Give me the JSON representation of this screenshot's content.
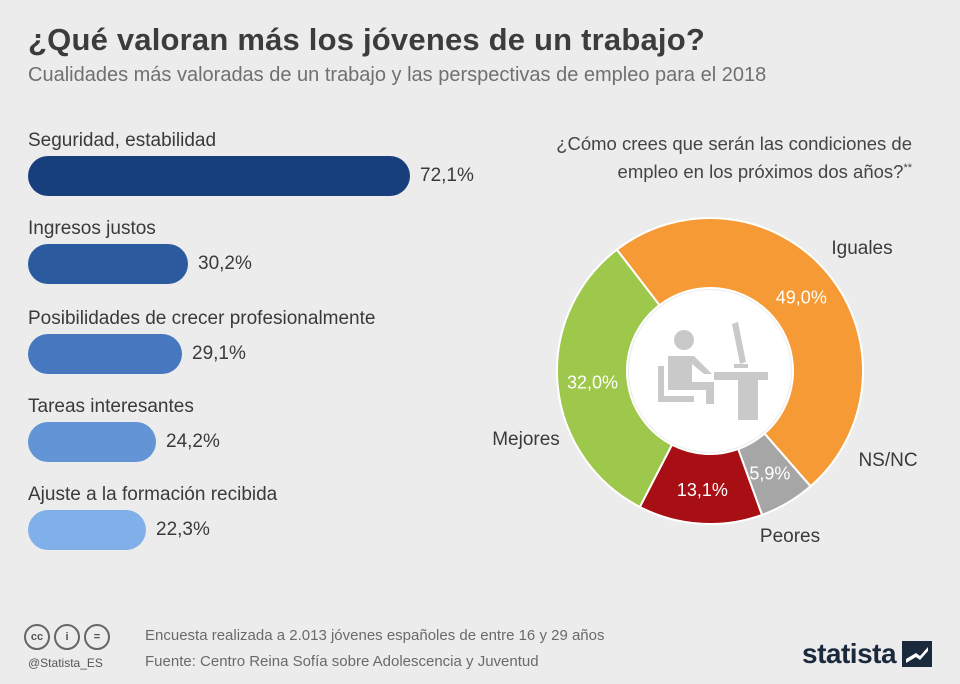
{
  "header": {
    "title": "¿Qué valoran más los jóvenes de un trabajo?",
    "subtitle": "Cualidades más valoradas de un trabajo y las perspectivas de empleo para el 2018"
  },
  "chart_data": [
    {
      "type": "bar",
      "orientation": "horizontal",
      "categories": [
        "Seguridad, estabilidad",
        "Ingresos justos",
        "Posibilidades de crecer profesionalmente",
        "Tareas interesantes",
        "Ajuste a la formación recibida"
      ],
      "values": [
        72.1,
        30.2,
        29.1,
        24.2,
        22.3
      ],
      "value_labels": [
        "72,1%",
        "30,2%",
        "29,1%",
        "24,2%",
        "22,3%"
      ],
      "colors": [
        "#173f7c",
        "#2c5a9e",
        "#4677bf",
        "#6394d6",
        "#7fb0ea"
      ]
    },
    {
      "type": "pie",
      "donut": true,
      "title": "¿Cómo crees que serán las condiciones de empleo en los próximos dos años?",
      "title_line1": "¿Cómo crees que serán las condiciones de",
      "title_line2": "empleo en los próximos dos años?",
      "title_marker": "**",
      "slices": [
        {
          "label": "Iguales",
          "value": 49.0,
          "value_label": "49,0%",
          "color": "#f59a35"
        },
        {
          "label": "NS/NC",
          "value": 5.9,
          "value_label": "5,9%",
          "color": "#a6a6a6"
        },
        {
          "label": "Peores",
          "value": 13.1,
          "value_label": "13,1%",
          "color": "#a80f14"
        },
        {
          "label": "Mejores",
          "value": 32.0,
          "value_label": "32,0%",
          "color": "#9ec84b"
        }
      ]
    }
  ],
  "footer": {
    "note": "Encuesta realizada a 2.013 jóvenes españoles de entre 16 y 29 años",
    "source": "Fuente: Centro Reina Sofía sobre Adolescencia y Juventud",
    "handle": "@Statista_ES",
    "logo_text": "statista",
    "cc_icons": [
      "cc-icon",
      "by-icon",
      "nd-icon"
    ],
    "cc_glyphs": [
      "cc",
      "i",
      "="
    ]
  }
}
